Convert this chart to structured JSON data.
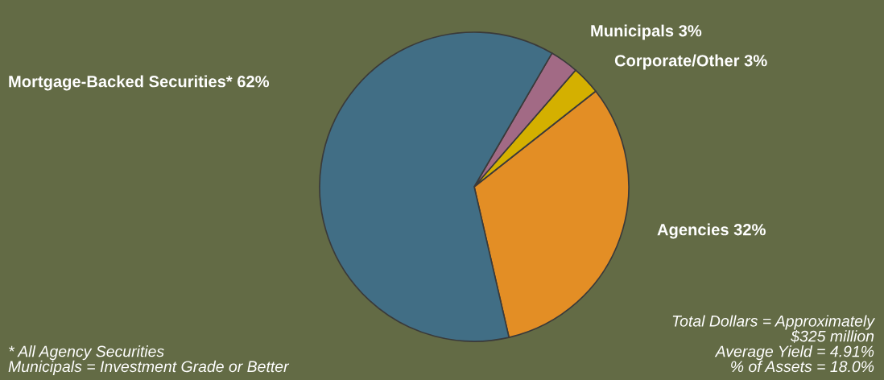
{
  "chart_data": {
    "type": "pie",
    "categories": [
      "Agencies",
      "Corporate/Other",
      "Municipals",
      "Mortgage-Backed Securities*"
    ],
    "values": [
      32,
      3,
      3,
      62
    ],
    "value_labels": [
      "32%",
      "3%",
      "3%",
      "62%"
    ],
    "colors": [
      "#e38e25",
      "#d4b000",
      "#a26a85",
      "#416e85"
    ],
    "annotations": [
      "* All Agency Securities\nMunicipals = Investment Grade or Better",
      "Total Dollars = Approximately\n$325 million\nAverage Yield = 4.91%\n% of Assets = 18.0%"
    ]
  }
}
